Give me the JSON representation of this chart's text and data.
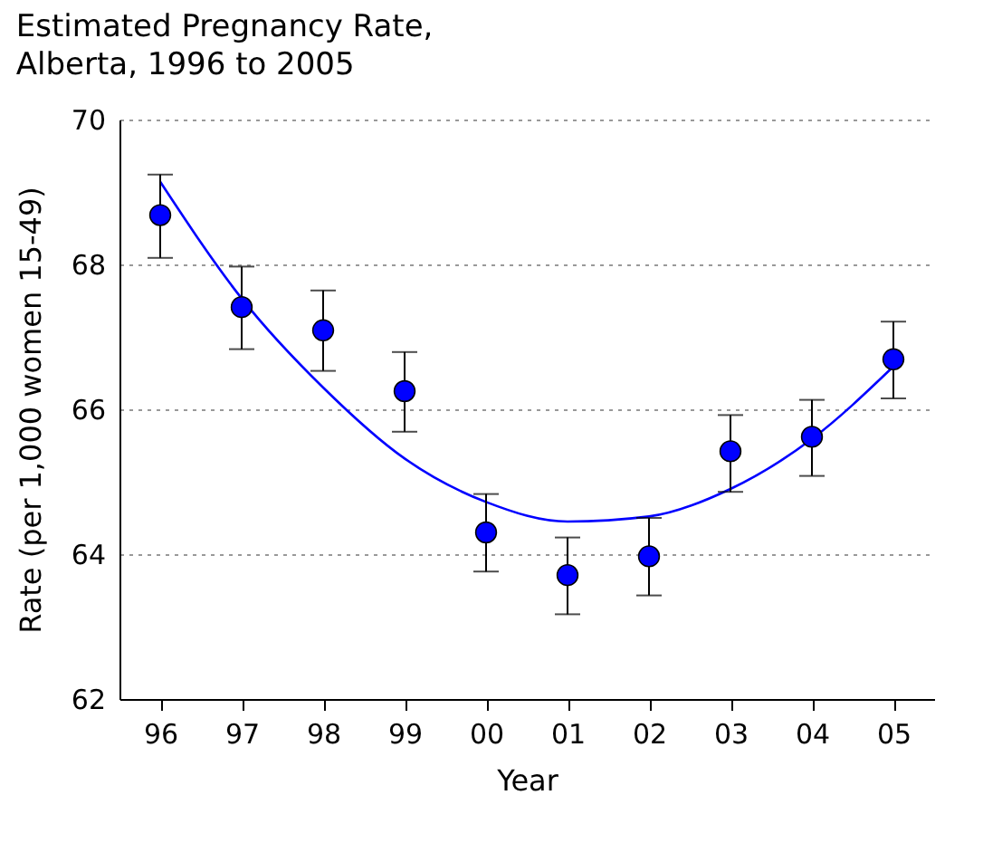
{
  "chart_data": {
    "type": "scatter",
    "title": "Estimated Pregnancy Rate,\nAlberta, 1996 to 2005",
    "xlabel": "Year",
    "ylabel": "Rate (per 1,000 women 15-49)",
    "categories": [
      "96",
      "97",
      "98",
      "99",
      "00",
      "01",
      "02",
      "03",
      "04",
      "05"
    ],
    "series": [
      {
        "type": "line",
        "color": "#0000ff",
        "x": [
          "96",
          "97",
          "98",
          "99",
          "00",
          "01",
          "02",
          "03",
          "04",
          "05"
        ],
        "values": [
          69.14,
          67.53,
          66.3,
          65.32,
          64.72,
          64.45,
          64.52,
          64.9,
          65.59,
          66.59
        ]
      },
      {
        "color": "#0000ff",
        "marker": "circle",
        "values": [
          68.68,
          67.41,
          67.09,
          66.25,
          64.3,
          63.71,
          63.97,
          65.42,
          65.62,
          66.69
        ],
        "errors": [
          [
            68.09,
            69.24
          ],
          [
            66.83,
            67.97
          ],
          [
            66.53,
            67.64
          ],
          [
            65.69,
            66.79
          ],
          [
            63.76,
            64.83
          ],
          [
            63.17,
            64.23
          ],
          [
            63.43,
            64.5
          ],
          [
            64.86,
            65.92
          ],
          [
            65.08,
            66.13
          ],
          [
            66.15,
            67.21
          ]
        ]
      }
    ],
    "ylim": [
      62,
      70
    ],
    "yticks": [
      62,
      64,
      66,
      68,
      70
    ],
    "grid": "y"
  }
}
